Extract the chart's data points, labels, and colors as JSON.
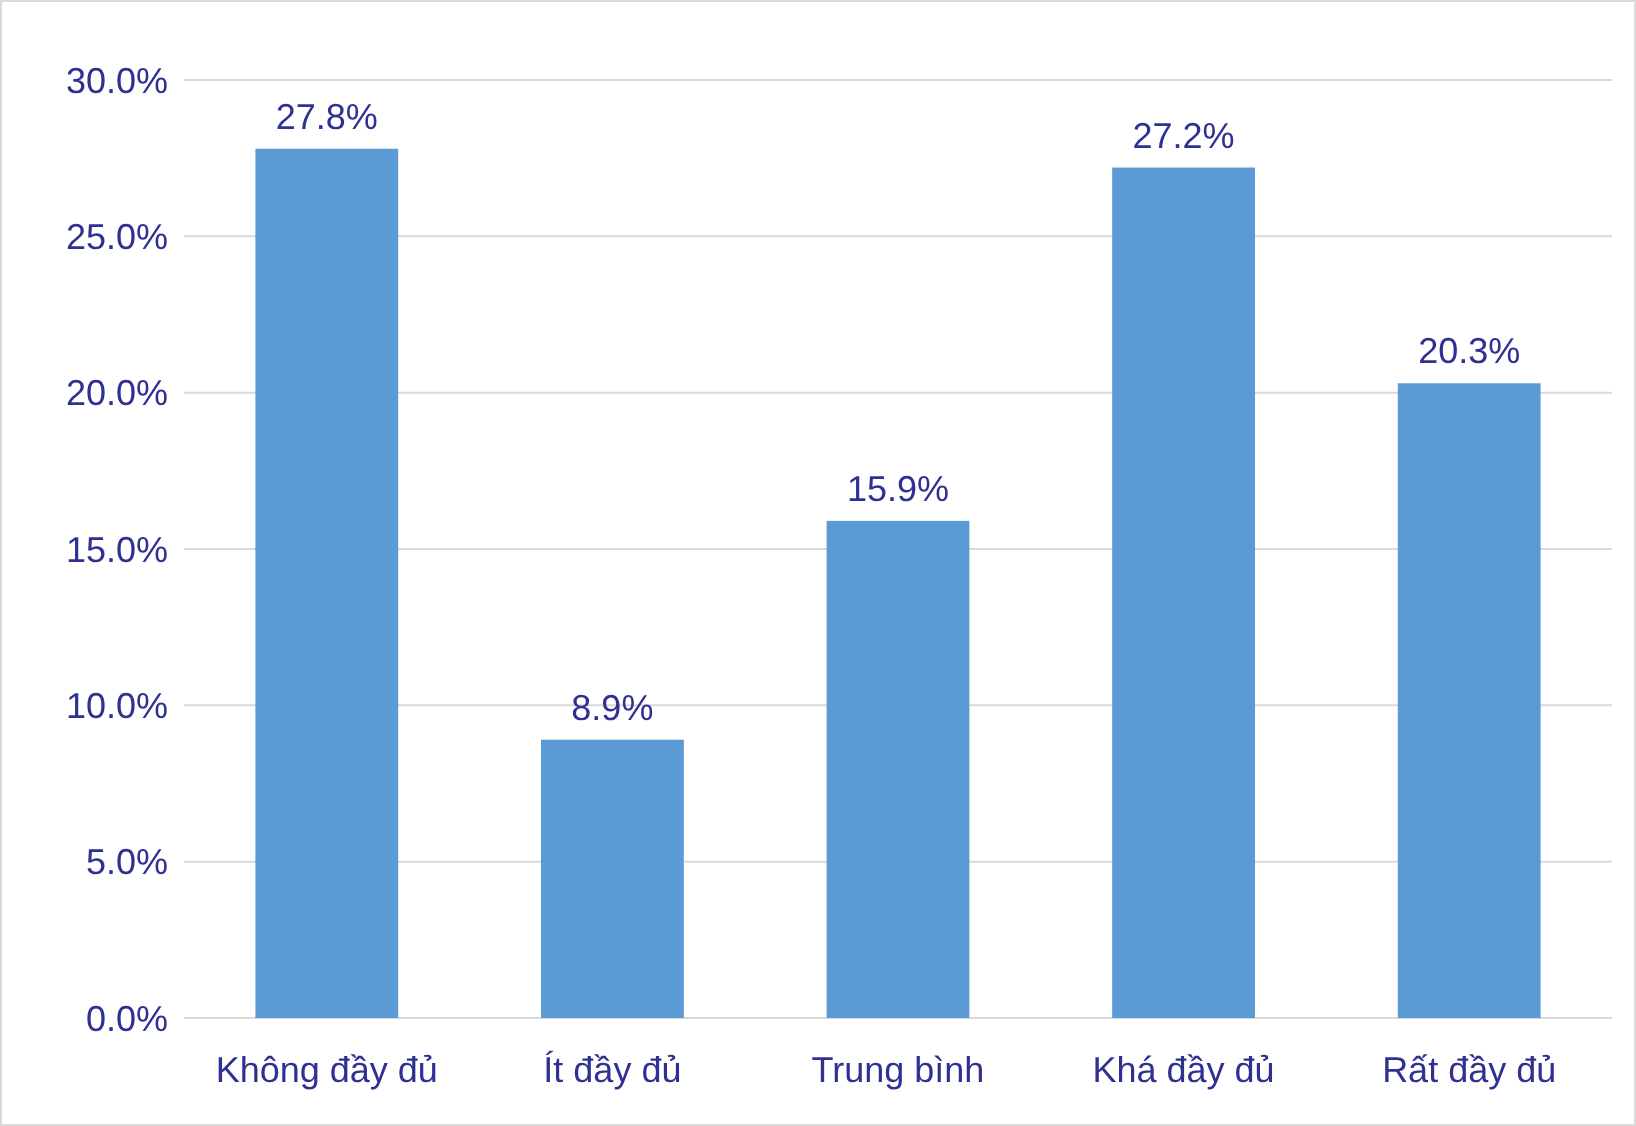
{
  "chart_data": {
    "type": "bar",
    "categories": [
      "Không đầy đủ",
      "Ít đầy đủ",
      "Trung bình",
      "Khá đầy đủ",
      "Rất đầy đủ"
    ],
    "values": [
      27.8,
      8.9,
      15.9,
      27.2,
      20.3
    ],
    "value_labels": [
      "27.8%",
      "8.9%",
      "15.9%",
      "27.2%",
      "20.3%"
    ],
    "color": "#5b9bd5",
    "ylim": [
      0,
      30
    ],
    "yticks": [
      {
        "value": 0,
        "label": "0.0%"
      },
      {
        "value": 5,
        "label": "5.0%"
      },
      {
        "value": 10,
        "label": "10.0%"
      },
      {
        "value": 15,
        "label": "15.0%"
      },
      {
        "value": 20,
        "label": "20.0%"
      },
      {
        "value": 25,
        "label": "25.0%"
      },
      {
        "value": 30,
        "label": "30.0%"
      }
    ],
    "grid": "y"
  }
}
